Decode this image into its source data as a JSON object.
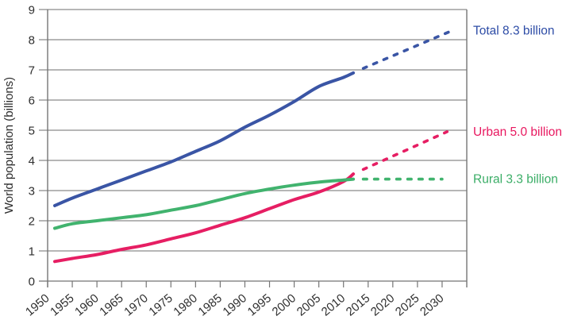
{
  "chart_data": {
    "type": "line",
    "title": "",
    "ylabel": "World population (billions)",
    "ylim": [
      0,
      9
    ],
    "yticks": [
      0,
      1,
      2,
      3,
      4,
      5,
      6,
      7,
      8,
      9
    ],
    "xtick_years": [
      1950,
      1955,
      1960,
      1965,
      1970,
      1975,
      1980,
      1985,
      1990,
      1995,
      2000,
      2005,
      2010,
      2015,
      2020,
      2025,
      2030
    ],
    "xlim": [
      1950,
      2035
    ],
    "grid": "horizontal",
    "legend_position": "right-of-plot",
    "background_color": "#ffffff",
    "axis_color": "#757575",
    "grid_color": "#8a8a8a",
    "text_color": "#2e2e2e",
    "series": [
      {
        "name": "Total",
        "label": "Total 8.3 billion",
        "line_color": "#3a55a5",
        "label_color": "#2d4ca6",
        "solid": {
          "x": [
            1950,
            1955,
            1960,
            1965,
            1970,
            1975,
            1980,
            1985,
            1990,
            1995,
            2000,
            2005,
            2010,
            2012
          ],
          "y": [
            2.5,
            2.75,
            3.05,
            3.35,
            3.65,
            3.95,
            4.3,
            4.65,
            5.1,
            5.5,
            5.95,
            6.45,
            6.75,
            6.9
          ]
        },
        "projection": {
          "style": "dotted",
          "x": [
            2014,
            2032
          ],
          "y": [
            7.05,
            8.3
          ]
        }
      },
      {
        "name": "Urban",
        "label": "Urban 5.0 billion",
        "line_color": "#e61e63",
        "label_color": "#e8175f",
        "solid": {
          "x": [
            1950,
            1955,
            1960,
            1965,
            1970,
            1975,
            1980,
            1985,
            1990,
            1995,
            2000,
            2005,
            2010,
            2012
          ],
          "y": [
            0.65,
            0.75,
            0.88,
            1.05,
            1.2,
            1.4,
            1.6,
            1.85,
            2.1,
            2.4,
            2.7,
            2.95,
            3.3,
            3.55
          ]
        },
        "projection": {
          "style": "dotted",
          "x": [
            2014,
            2031
          ],
          "y": [
            3.7,
            4.95
          ]
        }
      },
      {
        "name": "Rural",
        "label": "Rural 3.3 billion",
        "line_color": "#41b36e",
        "label_color": "#3aad66",
        "solid": {
          "x": [
            1950,
            1955,
            1960,
            1965,
            1970,
            1975,
            1980,
            1985,
            1990,
            1995,
            2000,
            2005,
            2010,
            2012
          ],
          "y": [
            1.75,
            1.9,
            2.0,
            2.1,
            2.2,
            2.35,
            2.5,
            2.7,
            2.9,
            3.05,
            3.18,
            3.28,
            3.35,
            3.38
          ]
        },
        "projection": {
          "style": "dotted",
          "x": [
            2014,
            2030
          ],
          "y": [
            3.38,
            3.38
          ]
        }
      }
    ]
  }
}
